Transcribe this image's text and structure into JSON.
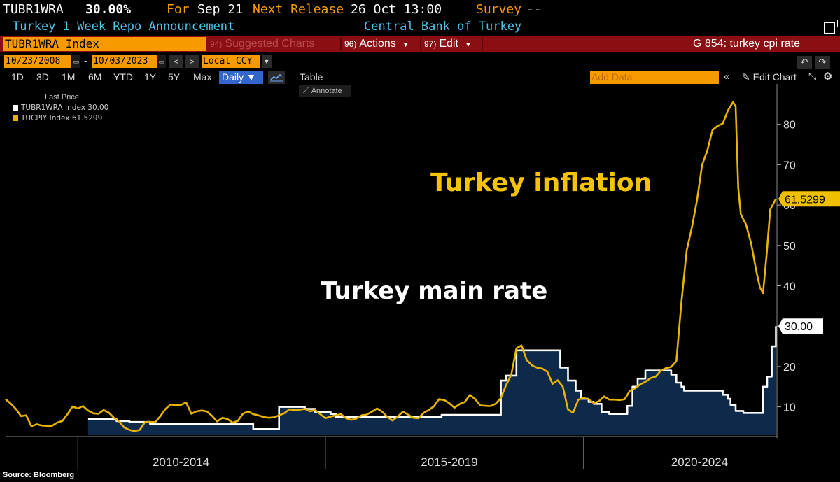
{
  "header": {
    "ticker": "TUBR1WRA",
    "last_value": "30.00%",
    "for_label": "For",
    "for_date": "Sep 21",
    "next_release_label": "Next Release",
    "next_release_date": "26 Oct 13:00",
    "survey_label": "Survey",
    "survey_value": "--",
    "description": "Turkey 1 Week Repo Announcement",
    "source_org": "Central Bank of Turkey"
  },
  "toolbar": {
    "security": "TUBR1WRA Index",
    "suggested_num": "94)",
    "suggested_label": "Suggested Charts",
    "actions_num": "96)",
    "actions_label": "Actions",
    "edit_num": "97)",
    "edit_label": "Edit",
    "function": "G 854: turkey cpi rate"
  },
  "daterange": {
    "start": "10/23/2008",
    "dash": "-",
    "end": "10/03/2023",
    "currency": "Local CCY"
  },
  "periods": [
    "1D",
    "3D",
    "1M",
    "6M",
    "YTD",
    "1Y",
    "5Y",
    "Max"
  ],
  "frequency": "Daily ▼",
  "table_label": "Table",
  "annotate_label": "Annotate",
  "add_data_placeholder": "Add Data",
  "edit_chart_label": "Edit Chart",
  "legend": {
    "header": "Last Price",
    "items": [
      {
        "label": "TUBR1WRA Index 30.00",
        "color": "#ffffff"
      },
      {
        "label": "TUCPIY Index   61.5299",
        "color": "#e8b400"
      }
    ]
  },
  "annotations": {
    "inflation": "Turkey inflation",
    "rate": "Turkey main rate"
  },
  "source": "Source: Bloomberg",
  "colors": {
    "rate": "#ffffff",
    "rate_fill": "#0e2a4a",
    "inflation": "#e8b400",
    "orange": "#f79a00",
    "toolbar_red": "#8b0f12",
    "link_blue": "#4cc3e8"
  },
  "chart_data": {
    "type": "line",
    "x_unit": "fractional year",
    "xlim": [
      2008.8,
      2023.75
    ],
    "ylim": [
      3,
      90
    ],
    "y_ticks": [
      10,
      20,
      30,
      40,
      50,
      60,
      70,
      80
    ],
    "x_period_labels": [
      "2010-2014",
      "2015-2019",
      "2020-2024"
    ],
    "grid": false,
    "y_axis_side": "right",
    "series": [
      {
        "name": "TUBR1WRA Index",
        "color": "#ffffff",
        "fill": true,
        "step": true,
        "last_value": "30.00",
        "points": [
          [
            2010.4,
            7.0
          ],
          [
            2010.95,
            6.5
          ],
          [
            2011.2,
            6.25
          ],
          [
            2011.6,
            5.75
          ],
          [
            2013.45,
            5.75
          ],
          [
            2013.6,
            4.5
          ],
          [
            2014.05,
            4.5
          ],
          [
            2014.1,
            10.0
          ],
          [
            2014.45,
            10.0
          ],
          [
            2014.6,
            9.5
          ],
          [
            2014.8,
            8.75
          ],
          [
            2015.1,
            8.25
          ],
          [
            2015.2,
            7.5
          ],
          [
            2017.25,
            8.0
          ],
          [
            2017.35,
            8.0
          ],
          [
            2018.25,
            8.0
          ],
          [
            2018.4,
            16.5
          ],
          [
            2018.5,
            17.75
          ],
          [
            2018.7,
            24.0
          ],
          [
            2019.45,
            24.0
          ],
          [
            2019.55,
            19.75
          ],
          [
            2019.7,
            16.5
          ],
          [
            2019.85,
            14.0
          ],
          [
            2019.95,
            12.0
          ],
          [
            2020.1,
            11.25
          ],
          [
            2020.2,
            10.75
          ],
          [
            2020.35,
            8.75
          ],
          [
            2020.5,
            8.25
          ],
          [
            2020.75,
            8.25
          ],
          [
            2020.85,
            10.25
          ],
          [
            2020.95,
            15.0
          ],
          [
            2021.05,
            17.0
          ],
          [
            2021.2,
            19.0
          ],
          [
            2021.6,
            19.0
          ],
          [
            2021.7,
            18.0
          ],
          [
            2021.8,
            16.0
          ],
          [
            2021.9,
            15.0
          ],
          [
            2021.95,
            14.0
          ],
          [
            2022.6,
            14.0
          ],
          [
            2022.7,
            13.0
          ],
          [
            2022.8,
            12.0
          ],
          [
            2022.85,
            10.5
          ],
          [
            2022.95,
            9.0
          ],
          [
            2023.1,
            8.5
          ],
          [
            2023.4,
            8.5
          ],
          [
            2023.48,
            15.0
          ],
          [
            2023.56,
            17.5
          ],
          [
            2023.65,
            25.0
          ],
          [
            2023.73,
            30.0
          ]
        ]
      },
      {
        "name": "TUCPIY Index",
        "color": "#e8b400",
        "fill": false,
        "step": false,
        "last_value": "61.5299",
        "points": [
          [
            2008.8,
            11.9
          ],
          [
            2008.9,
            10.8
          ],
          [
            2009.0,
            9.5
          ],
          [
            2009.1,
            7.7
          ],
          [
            2009.2,
            7.9
          ],
          [
            2009.3,
            5.2
          ],
          [
            2009.4,
            5.7
          ],
          [
            2009.5,
            5.4
          ],
          [
            2009.6,
            5.3
          ],
          [
            2009.7,
            5.3
          ],
          [
            2009.8,
            6.1
          ],
          [
            2009.9,
            6.5
          ],
          [
            2010.0,
            8.2
          ],
          [
            2010.1,
            10.1
          ],
          [
            2010.2,
            9.6
          ],
          [
            2010.3,
            10.2
          ],
          [
            2010.4,
            9.1
          ],
          [
            2010.5,
            8.4
          ],
          [
            2010.6,
            8.3
          ],
          [
            2010.7,
            9.2
          ],
          [
            2010.8,
            8.6
          ],
          [
            2010.9,
            7.3
          ],
          [
            2011.0,
            6.4
          ],
          [
            2011.1,
            4.9
          ],
          [
            2011.2,
            4.3
          ],
          [
            2011.3,
            4.0
          ],
          [
            2011.4,
            4.3
          ],
          [
            2011.5,
            6.2
          ],
          [
            2011.6,
            6.3
          ],
          [
            2011.7,
            6.2
          ],
          [
            2011.8,
            7.7
          ],
          [
            2011.9,
            9.5
          ],
          [
            2012.0,
            10.6
          ],
          [
            2012.1,
            10.4
          ],
          [
            2012.2,
            10.5
          ],
          [
            2012.3,
            11.1
          ],
          [
            2012.4,
            8.3
          ],
          [
            2012.5,
            8.9
          ],
          [
            2012.6,
            9.1
          ],
          [
            2012.7,
            8.9
          ],
          [
            2012.8,
            7.8
          ],
          [
            2012.9,
            6.4
          ],
          [
            2013.0,
            7.3
          ],
          [
            2013.1,
            7.0
          ],
          [
            2013.2,
            6.1
          ],
          [
            2013.3,
            6.5
          ],
          [
            2013.4,
            8.3
          ],
          [
            2013.5,
            8.9
          ],
          [
            2013.6,
            8.2
          ],
          [
            2013.7,
            7.9
          ],
          [
            2013.8,
            7.5
          ],
          [
            2013.9,
            7.3
          ],
          [
            2014.0,
            7.4
          ],
          [
            2014.1,
            7.9
          ],
          [
            2014.2,
            8.4
          ],
          [
            2014.3,
            9.4
          ],
          [
            2014.4,
            9.2
          ],
          [
            2014.5,
            9.3
          ],
          [
            2014.6,
            9.5
          ],
          [
            2014.7,
            8.9
          ],
          [
            2014.8,
            9.2
          ],
          [
            2014.9,
            8.2
          ],
          [
            2015.0,
            7.2
          ],
          [
            2015.1,
            7.6
          ],
          [
            2015.2,
            7.9
          ],
          [
            2015.3,
            8.2
          ],
          [
            2015.4,
            7.2
          ],
          [
            2015.5,
            6.8
          ],
          [
            2015.6,
            7.1
          ],
          [
            2015.7,
            7.9
          ],
          [
            2015.8,
            8.1
          ],
          [
            2015.9,
            8.8
          ],
          [
            2016.0,
            9.6
          ],
          [
            2016.1,
            8.8
          ],
          [
            2016.2,
            7.5
          ],
          [
            2016.3,
            6.6
          ],
          [
            2016.4,
            7.6
          ],
          [
            2016.5,
            8.8
          ],
          [
            2016.6,
            8.1
          ],
          [
            2016.7,
            7.3
          ],
          [
            2016.8,
            7.2
          ],
          [
            2016.9,
            8.5
          ],
          [
            2017.0,
            9.2
          ],
          [
            2017.1,
            10.1
          ],
          [
            2017.2,
            11.9
          ],
          [
            2017.3,
            11.7
          ],
          [
            2017.4,
            10.9
          ],
          [
            2017.5,
            9.8
          ],
          [
            2017.6,
            10.7
          ],
          [
            2017.7,
            11.2
          ],
          [
            2017.8,
            12.98
          ],
          [
            2017.9,
            11.9
          ],
          [
            2018.0,
            10.35
          ],
          [
            2018.1,
            10.26
          ],
          [
            2018.2,
            10.2
          ],
          [
            2018.3,
            10.8
          ],
          [
            2018.4,
            12.2
          ],
          [
            2018.5,
            15.4
          ],
          [
            2018.6,
            17.9
          ],
          [
            2018.7,
            24.5
          ],
          [
            2018.8,
            25.2
          ],
          [
            2018.9,
            21.6
          ],
          [
            2019.0,
            20.3
          ],
          [
            2019.1,
            19.7
          ],
          [
            2019.2,
            19.5
          ],
          [
            2019.3,
            18.7
          ],
          [
            2019.4,
            15.7
          ],
          [
            2019.5,
            16.6
          ],
          [
            2019.6,
            15.0
          ],
          [
            2019.7,
            9.3
          ],
          [
            2019.8,
            8.6
          ],
          [
            2019.9,
            11.8
          ],
          [
            2020.0,
            12.2
          ],
          [
            2020.1,
            11.9
          ],
          [
            2020.2,
            10.9
          ],
          [
            2020.3,
            11.4
          ],
          [
            2020.4,
            12.6
          ],
          [
            2020.5,
            11.8
          ],
          [
            2020.6,
            11.8
          ],
          [
            2020.7,
            11.7
          ],
          [
            2020.8,
            11.9
          ],
          [
            2020.9,
            14.0
          ],
          [
            2021.0,
            14.6
          ],
          [
            2021.1,
            15.6
          ],
          [
            2021.2,
            16.2
          ],
          [
            2021.3,
            17.1
          ],
          [
            2021.4,
            17.5
          ],
          [
            2021.5,
            19.0
          ],
          [
            2021.6,
            19.6
          ],
          [
            2021.7,
            19.9
          ],
          [
            2021.8,
            21.3
          ],
          [
            2021.9,
            36.1
          ],
          [
            2022.0,
            48.7
          ],
          [
            2022.1,
            54.4
          ],
          [
            2022.2,
            61.1
          ],
          [
            2022.3,
            69.97
          ],
          [
            2022.4,
            73.5
          ],
          [
            2022.5,
            78.6
          ],
          [
            2022.6,
            79.6
          ],
          [
            2022.7,
            80.2
          ],
          [
            2022.8,
            83.45
          ],
          [
            2022.9,
            85.51
          ],
          [
            2022.95,
            84.4
          ],
          [
            2023.0,
            64.3
          ],
          [
            2023.05,
            57.7
          ],
          [
            2023.15,
            55.2
          ],
          [
            2023.25,
            50.5
          ],
          [
            2023.35,
            43.7
          ],
          [
            2023.42,
            39.6
          ],
          [
            2023.48,
            38.2
          ],
          [
            2023.55,
            47.8
          ],
          [
            2023.62,
            58.9
          ],
          [
            2023.73,
            61.5299
          ]
        ]
      }
    ]
  }
}
